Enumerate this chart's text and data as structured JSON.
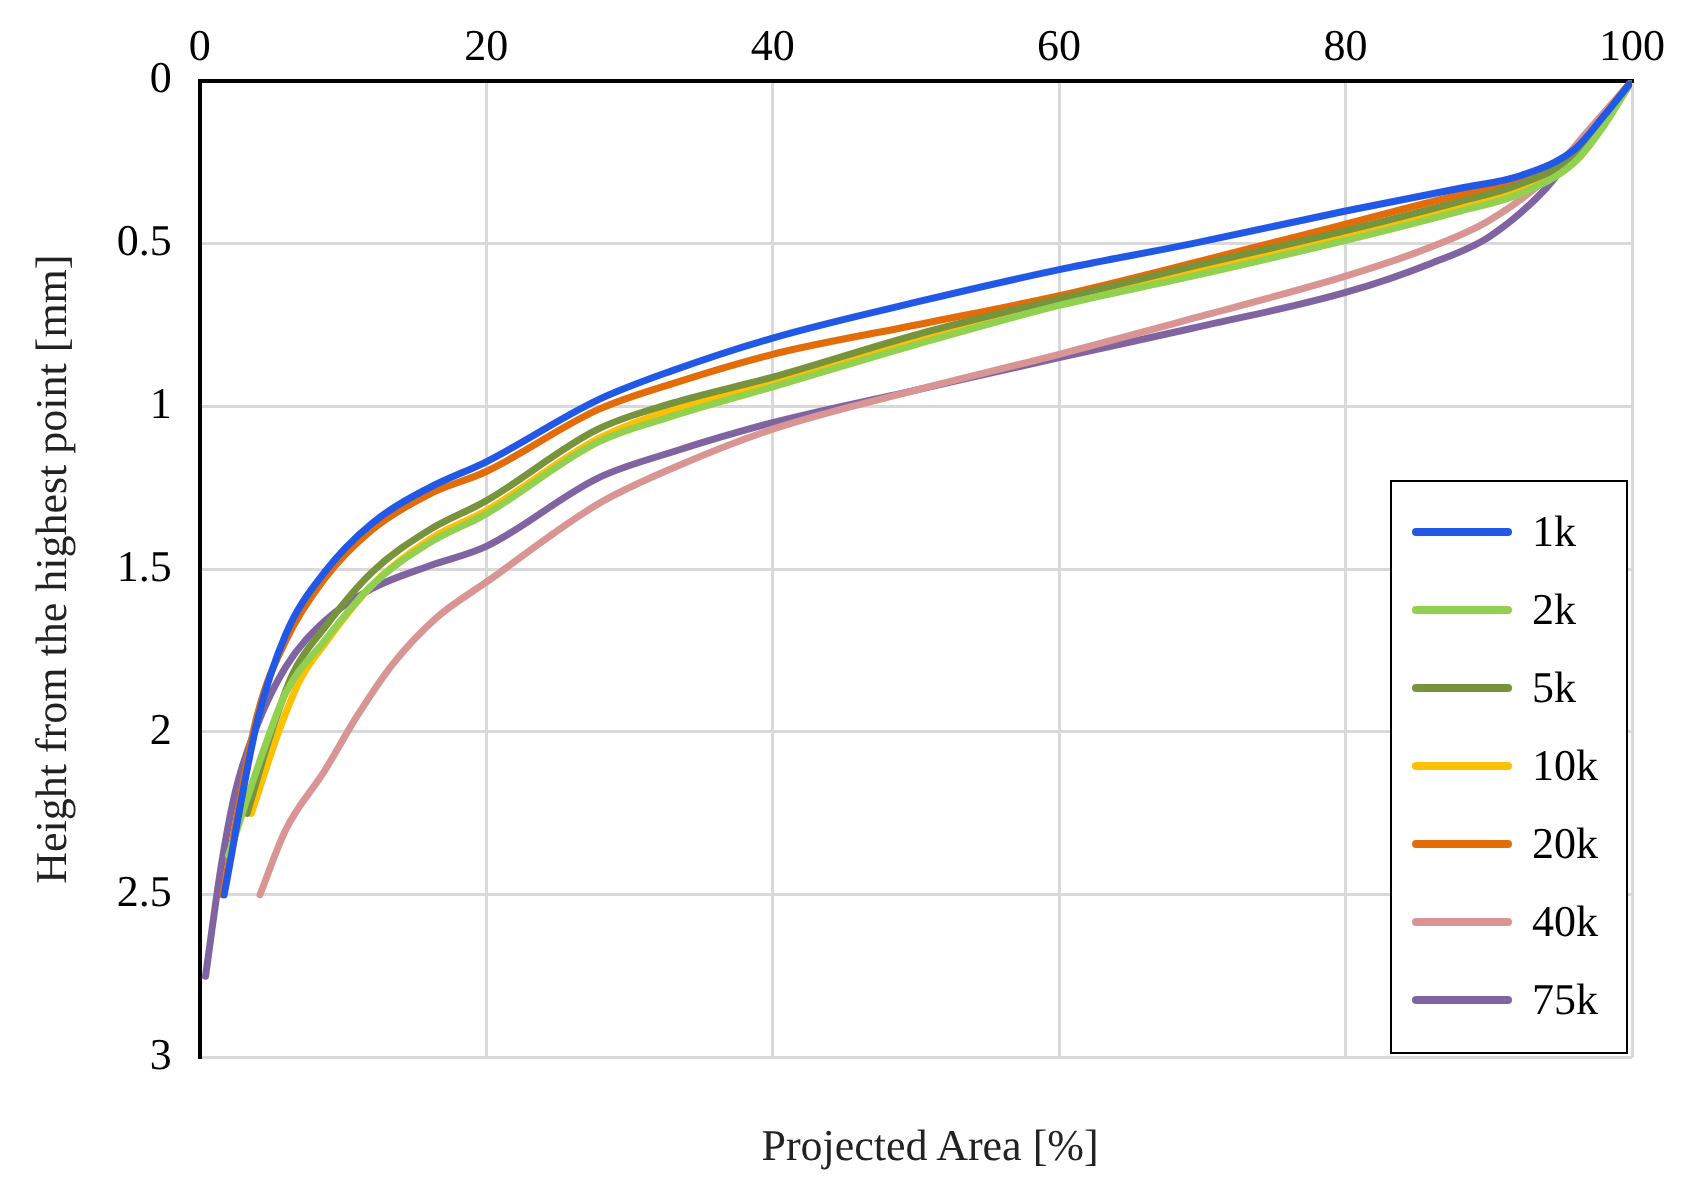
{
  "chart_data": {
    "type": "line",
    "xlabel": "Projected Area [%]",
    "ylabel": "Height from the highest point [mm]",
    "xlim": [
      0,
      100
    ],
    "xticks": [
      0,
      20,
      40,
      60,
      80,
      100
    ],
    "ylim": [
      3,
      0
    ],
    "yticks": [
      0,
      0.5,
      1,
      1.5,
      2,
      2.5,
      3
    ],
    "grid": true,
    "legend": "bottom right",
    "marker": "none",
    "line_style": "solid",
    "series": [
      {
        "name": "1k",
        "color": "#2159e6",
        "x": [
          1.7,
          4.0,
          6,
          8.7,
          12,
          16,
          20,
          27.8,
          33,
          40,
          50,
          60,
          69.3,
          80,
          88,
          92.3,
          96,
          98,
          100
        ],
        "values": [
          2.5,
          1.97,
          1.7,
          1.51,
          1.36,
          1.25,
          1.17,
          0.98,
          0.89,
          0.79,
          0.68,
          0.58,
          0.5,
          0.4,
          0.33,
          0.29,
          0.21,
          0.11,
          0
        ]
      },
      {
        "name": "2k",
        "color": "#92d050",
        "x": [
          2.0,
          4.5,
          6,
          8.7,
          12,
          16,
          20,
          27.8,
          33,
          40,
          50,
          60,
          69.3,
          80,
          88,
          92,
          96,
          98,
          100
        ],
        "values": [
          2.38,
          2.05,
          1.88,
          1.72,
          1.55,
          1.42,
          1.33,
          1.11,
          1.03,
          0.94,
          0.81,
          0.69,
          0.6,
          0.49,
          0.4,
          0.35,
          0.25,
          0.14,
          0
        ]
      },
      {
        "name": "5k",
        "color": "#77933c",
        "x": [
          3.3,
          5,
          6.5,
          8.7,
          12,
          16,
          20,
          27.8,
          33,
          40,
          50,
          60,
          69.3,
          80,
          88,
          92,
          96,
          98,
          100
        ],
        "values": [
          2.25,
          2.0,
          1.82,
          1.68,
          1.51,
          1.38,
          1.29,
          1.07,
          0.99,
          0.91,
          0.78,
          0.67,
          0.57,
          0.46,
          0.37,
          0.32,
          0.23,
          0.12,
          0
        ]
      },
      {
        "name": "10k",
        "color": "#ffc000",
        "x": [
          3.6,
          5.5,
          7,
          8.7,
          12,
          16,
          20,
          27.8,
          33,
          40,
          50,
          60,
          69.3,
          80,
          88,
          92,
          96,
          98,
          100
        ],
        "values": [
          2.25,
          2.0,
          1.84,
          1.73,
          1.55,
          1.41,
          1.32,
          1.1,
          1.01,
          0.93,
          0.8,
          0.68,
          0.59,
          0.47,
          0.38,
          0.33,
          0.24,
          0.13,
          0
        ]
      },
      {
        "name": "20k",
        "color": "#e36c09",
        "x": [
          1.6,
          4.0,
          6,
          8.7,
          12,
          16,
          20,
          27.8,
          33,
          40,
          50,
          60,
          69.3,
          80,
          88,
          92,
          96,
          98,
          100
        ],
        "values": [
          2.5,
          1.95,
          1.72,
          1.53,
          1.38,
          1.27,
          1.2,
          1.01,
          0.93,
          0.84,
          0.75,
          0.66,
          0.56,
          0.44,
          0.35,
          0.31,
          0.22,
          0.11,
          0
        ]
      },
      {
        "name": "40k",
        "color": "#d99594",
        "x": [
          4.2,
          6,
          8.7,
          11,
          13.5,
          16.5,
          20,
          27.8,
          33,
          40,
          50,
          60,
          69.3,
          80,
          86,
          90,
          94,
          97,
          100
        ],
        "values": [
          2.5,
          2.3,
          2.12,
          1.95,
          1.79,
          1.65,
          1.54,
          1.3,
          1.19,
          1.07,
          0.95,
          0.84,
          0.73,
          0.6,
          0.51,
          0.43,
          0.3,
          0.15,
          0
        ]
      },
      {
        "name": "75k",
        "color": "#8064a2",
        "x": [
          0.4,
          1.5,
          2.5,
          3.9,
          6,
          8.7,
          12,
          16,
          20,
          27.8,
          33,
          40,
          50,
          60,
          69.3,
          80,
          86,
          90,
          94,
          97,
          100
        ],
        "values": [
          2.75,
          2.41,
          2.18,
          1.99,
          1.8,
          1.66,
          1.56,
          1.49,
          1.43,
          1.22,
          1.14,
          1.05,
          0.95,
          0.85,
          0.76,
          0.65,
          0.56,
          0.48,
          0.33,
          0.16,
          0
        ]
      }
    ]
  }
}
